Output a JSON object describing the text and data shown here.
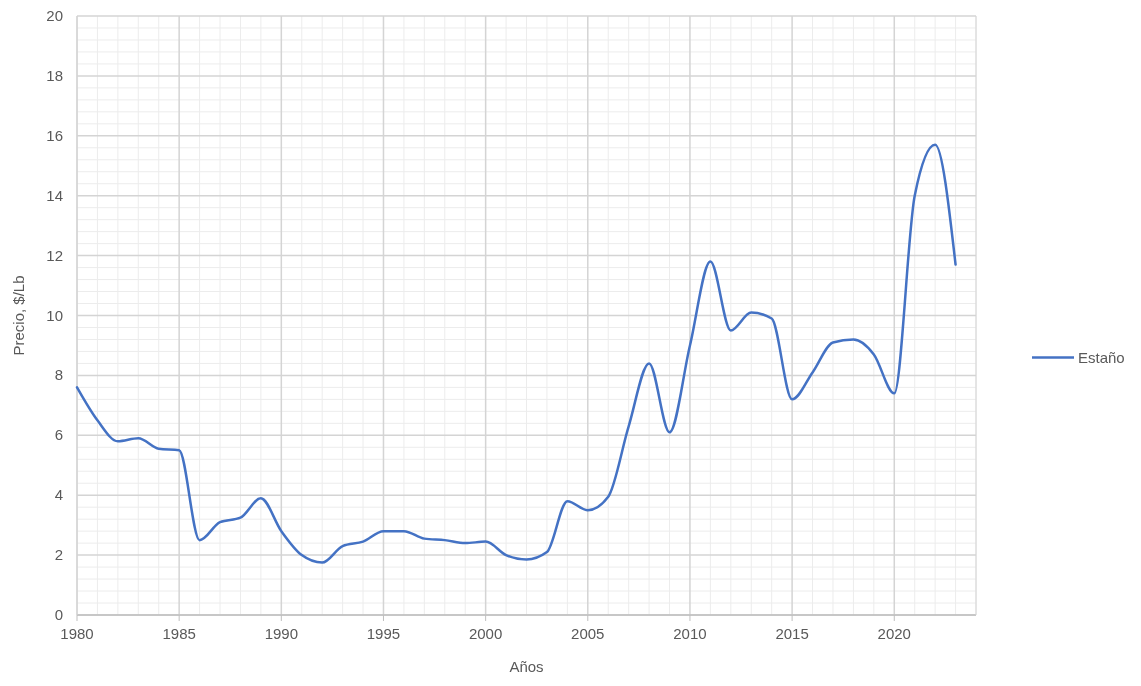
{
  "chart_data": {
    "type": "line",
    "xlabel": "Años",
    "ylabel": "Precio, $/Lb",
    "x": [
      1980,
      1981,
      1982,
      1983,
      1984,
      1985,
      1986,
      1987,
      1988,
      1989,
      1990,
      1991,
      1992,
      1993,
      1994,
      1995,
      1996,
      1997,
      1998,
      1999,
      2000,
      2001,
      2002,
      2003,
      2004,
      2005,
      2006,
      2007,
      2008,
      2009,
      2010,
      2011,
      2012,
      2013,
      2014,
      2015,
      2016,
      2017,
      2018,
      2019,
      2020,
      2021,
      2022,
      2023
    ],
    "series": [
      {
        "name": "Estaño",
        "color": "#4472c4",
        "values": [
          7.6,
          6.5,
          5.8,
          5.9,
          5.55,
          5.5,
          2.5,
          3.1,
          3.25,
          3.9,
          2.8,
          2.0,
          1.75,
          2.3,
          2.45,
          2.8,
          2.8,
          2.55,
          2.5,
          2.4,
          2.45,
          2.0,
          1.85,
          2.1,
          3.8,
          3.5,
          3.95,
          6.3,
          8.4,
          6.1,
          9.0,
          11.8,
          9.5,
          10.1,
          9.9,
          7.2,
          8.1,
          9.1,
          9.2,
          8.7,
          7.4,
          14.0,
          15.7,
          11.7
        ]
      }
    ],
    "xlim": [
      1980,
      2024
    ],
    "xticks": [
      1980,
      1985,
      1990,
      1995,
      2000,
      2005,
      2010,
      2015,
      2020
    ],
    "ylim": [
      0,
      20
    ],
    "yticks": [
      0,
      2,
      4,
      6,
      8,
      10,
      12,
      14,
      16,
      18,
      20
    ],
    "grid": true,
    "legend": "right",
    "marker": "none",
    "line_style": "solid"
  }
}
